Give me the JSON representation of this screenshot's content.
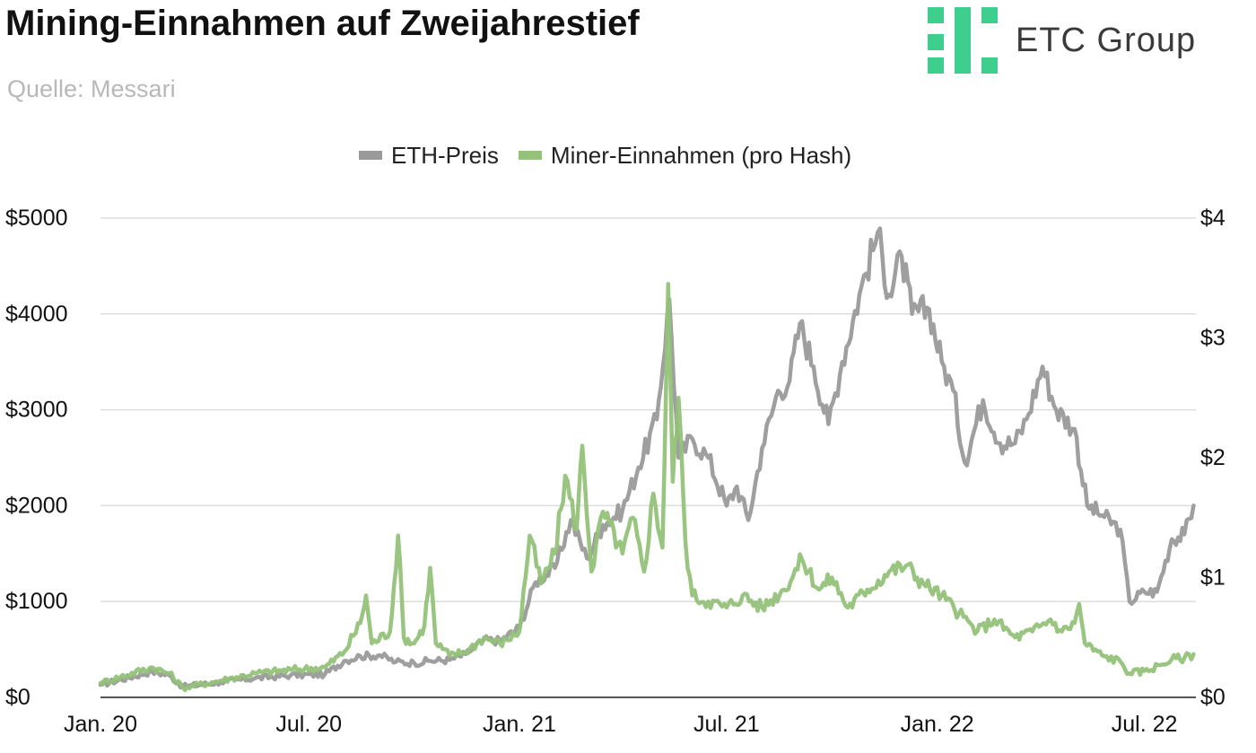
{
  "header": {
    "title": "Mining-Einnahmen auf Zweijahrestief",
    "subtitle": "Quelle: Messari"
  },
  "logo": {
    "text": "ETC Group",
    "icon": "etc-group-logo-icon",
    "color": "#3ecf8e"
  },
  "chart_data": {
    "type": "line",
    "title": "Mining-Einnahmen auf Zweijahrestief",
    "xlabel": "",
    "ylabel": "",
    "x_ticks": [
      "Jan. 20",
      "Jul. 20",
      "Jan. 21",
      "Jul. 21",
      "Jan. 22",
      "Jul. 22"
    ],
    "x_range": [
      "2020-01-01",
      "2022-08-15"
    ],
    "y_left": {
      "ticks": [
        "$0",
        "$1000",
        "$2000",
        "$3000",
        "$4000",
        "$5000"
      ],
      "range": [
        0,
        5000
      ]
    },
    "y_right": {
      "ticks": [
        "$0",
        "$1",
        "$2",
        "$3",
        "$4"
      ],
      "range": [
        0,
        4
      ]
    },
    "grid": true,
    "legend_position": "top-center",
    "series": [
      {
        "name": "ETH-Preis",
        "axis": "left",
        "color": "#9a9a9a",
        "points": [
          [
            "2020-01-01",
            130
          ],
          [
            "2020-02-15",
            270
          ],
          [
            "2020-03-01",
            230
          ],
          [
            "2020-03-13",
            110
          ],
          [
            "2020-04-15",
            160
          ],
          [
            "2020-05-15",
            200
          ],
          [
            "2020-06-15",
            230
          ],
          [
            "2020-07-15",
            240
          ],
          [
            "2020-08-01",
            380
          ],
          [
            "2020-08-15",
            430
          ],
          [
            "2020-09-01",
            440
          ],
          [
            "2020-09-15",
            370
          ],
          [
            "2020-10-01",
            360
          ],
          [
            "2020-10-15",
            380
          ],
          [
            "2020-11-01",
            390
          ],
          [
            "2020-11-15",
            450
          ],
          [
            "2020-12-01",
            600
          ],
          [
            "2020-12-15",
            590
          ],
          [
            "2021-01-01",
            730
          ],
          [
            "2021-01-15",
            1200
          ],
          [
            "2021-02-01",
            1350
          ],
          [
            "2021-02-15",
            1850
          ],
          [
            "2021-03-01",
            1450
          ],
          [
            "2021-03-15",
            1800
          ],
          [
            "2021-04-01",
            1950
          ],
          [
            "2021-04-15",
            2400
          ],
          [
            "2021-05-01",
            2900
          ],
          [
            "2021-05-12",
            4150
          ],
          [
            "2021-05-20",
            2500
          ],
          [
            "2021-06-01",
            2700
          ],
          [
            "2021-06-15",
            2500
          ],
          [
            "2021-07-01",
            2000
          ],
          [
            "2021-07-10",
            2200
          ],
          [
            "2021-07-20",
            1850
          ],
          [
            "2021-08-01",
            2600
          ],
          [
            "2021-08-15",
            3200
          ],
          [
            "2021-08-25",
            3300
          ],
          [
            "2021-09-03",
            3900
          ],
          [
            "2021-09-15",
            3450
          ],
          [
            "2021-09-28",
            2850
          ],
          [
            "2021-10-10",
            3500
          ],
          [
            "2021-10-25",
            4200
          ],
          [
            "2021-11-10",
            4850
          ],
          [
            "2021-11-20",
            4200
          ],
          [
            "2021-12-01",
            4600
          ],
          [
            "2021-12-10",
            4000
          ],
          [
            "2021-12-25",
            4050
          ],
          [
            "2022-01-05",
            3500
          ],
          [
            "2022-01-15",
            3200
          ],
          [
            "2022-01-25",
            2450
          ],
          [
            "2022-02-10",
            3100
          ],
          [
            "2022-02-25",
            2650
          ],
          [
            "2022-03-10",
            2650
          ],
          [
            "2022-03-20",
            2900
          ],
          [
            "2022-04-03",
            3450
          ],
          [
            "2022-04-15",
            3000
          ],
          [
            "2022-05-01",
            2800
          ],
          [
            "2022-05-12",
            2000
          ],
          [
            "2022-05-25",
            1900
          ],
          [
            "2022-06-10",
            1750
          ],
          [
            "2022-06-18",
            1000
          ],
          [
            "2022-07-01",
            1100
          ],
          [
            "2022-07-12",
            1100
          ],
          [
            "2022-07-25",
            1650
          ],
          [
            "2022-08-05",
            1700
          ],
          [
            "2022-08-13",
            2000
          ]
        ]
      },
      {
        "name": "Miner-Einnahmen (pro Hash)",
        "axis": "right",
        "color": "#94c27a",
        "points": [
          [
            "2020-01-01",
            0.12
          ],
          [
            "2020-02-15",
            0.25
          ],
          [
            "2020-03-01",
            0.2
          ],
          [
            "2020-03-13",
            0.08
          ],
          [
            "2020-04-15",
            0.14
          ],
          [
            "2020-05-15",
            0.2
          ],
          [
            "2020-06-15",
            0.23
          ],
          [
            "2020-07-15",
            0.25
          ],
          [
            "2020-08-01",
            0.38
          ],
          [
            "2020-08-15",
            0.62
          ],
          [
            "2020-08-20",
            0.85
          ],
          [
            "2020-08-25",
            0.45
          ],
          [
            "2020-09-10",
            0.55
          ],
          [
            "2020-09-17",
            1.35
          ],
          [
            "2020-09-22",
            0.5
          ],
          [
            "2020-10-01",
            0.45
          ],
          [
            "2020-10-10",
            0.6
          ],
          [
            "2020-10-15",
            1.08
          ],
          [
            "2020-10-20",
            0.45
          ],
          [
            "2020-11-01",
            0.35
          ],
          [
            "2020-11-15",
            0.38
          ],
          [
            "2020-12-01",
            0.5
          ],
          [
            "2020-12-15",
            0.45
          ],
          [
            "2021-01-01",
            0.55
          ],
          [
            "2021-01-10",
            1.35
          ],
          [
            "2021-01-20",
            0.95
          ],
          [
            "2021-02-01",
            1.2
          ],
          [
            "2021-02-10",
            1.85
          ],
          [
            "2021-02-20",
            1.4
          ],
          [
            "2021-02-25",
            2.1
          ],
          [
            "2021-03-05",
            1.05
          ],
          [
            "2021-03-15",
            1.55
          ],
          [
            "2021-04-01",
            1.2
          ],
          [
            "2021-04-10",
            1.5
          ],
          [
            "2021-04-20",
            1.05
          ],
          [
            "2021-04-28",
            1.7
          ],
          [
            "2021-05-06",
            1.25
          ],
          [
            "2021-05-11",
            3.45
          ],
          [
            "2021-05-15",
            1.8
          ],
          [
            "2021-05-20",
            2.5
          ],
          [
            "2021-05-26",
            1.3
          ],
          [
            "2021-06-01",
            0.85
          ],
          [
            "2021-06-15",
            0.8
          ],
          [
            "2021-07-01",
            0.75
          ],
          [
            "2021-07-15",
            0.85
          ],
          [
            "2021-08-01",
            0.75
          ],
          [
            "2021-08-20",
            0.9
          ],
          [
            "2021-09-05",
            1.15
          ],
          [
            "2021-09-20",
            0.9
          ],
          [
            "2021-10-01",
            1.0
          ],
          [
            "2021-10-15",
            0.75
          ],
          [
            "2021-11-01",
            0.9
          ],
          [
            "2021-11-20",
            1.05
          ],
          [
            "2021-12-05",
            1.1
          ],
          [
            "2021-12-20",
            0.95
          ],
          [
            "2022-01-05",
            0.85
          ],
          [
            "2022-01-20",
            0.7
          ],
          [
            "2022-02-05",
            0.55
          ],
          [
            "2022-02-20",
            0.65
          ],
          [
            "2022-03-10",
            0.5
          ],
          [
            "2022-03-25",
            0.55
          ],
          [
            "2022-04-10",
            0.65
          ],
          [
            "2022-04-20",
            0.55
          ],
          [
            "2022-05-01",
            0.62
          ],
          [
            "2022-05-05",
            0.78
          ],
          [
            "2022-05-10",
            0.45
          ],
          [
            "2022-05-25",
            0.35
          ],
          [
            "2022-06-10",
            0.3
          ],
          [
            "2022-06-18",
            0.2
          ],
          [
            "2022-07-01",
            0.22
          ],
          [
            "2022-07-15",
            0.27
          ],
          [
            "2022-07-25",
            0.32
          ],
          [
            "2022-08-05",
            0.33
          ],
          [
            "2022-08-13",
            0.36
          ]
        ]
      }
    ]
  }
}
